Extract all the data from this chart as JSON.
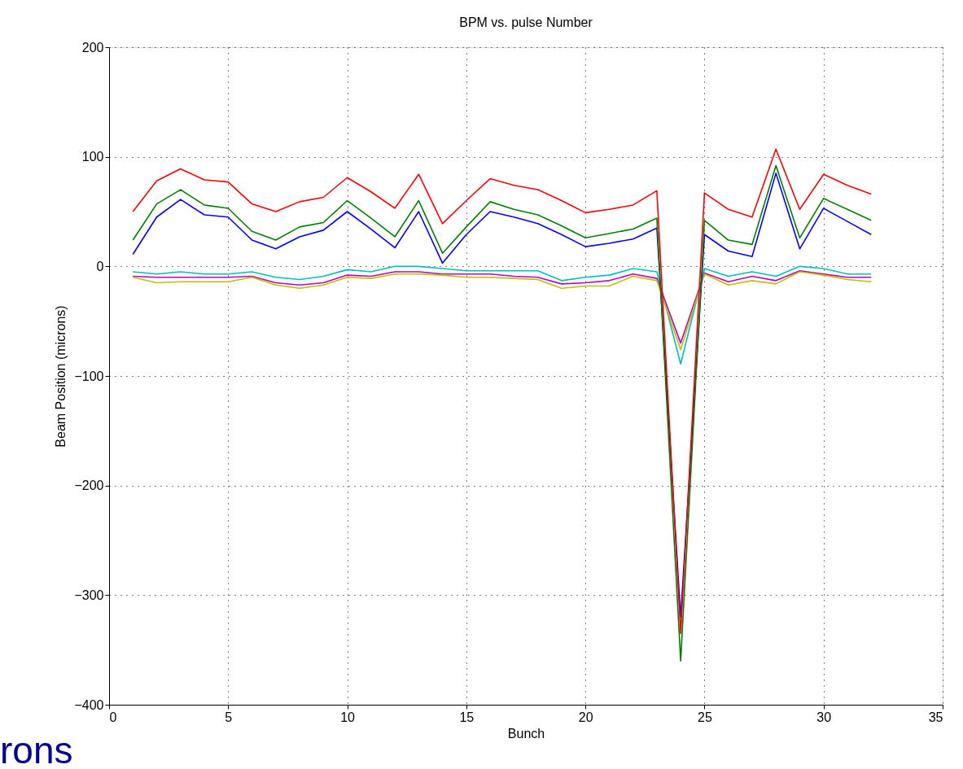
{
  "chart_data": {
    "type": "line",
    "title": "BPM vs. pulse Number",
    "xlabel": "Bunch",
    "ylabel": "Beam Position (microns)",
    "x": [
      1,
      2,
      3,
      4,
      5,
      6,
      7,
      8,
      9,
      10,
      11,
      12,
      13,
      14,
      15,
      16,
      17,
      18,
      19,
      20,
      21,
      22,
      23,
      24,
      25,
      26,
      27,
      28,
      29,
      30,
      31,
      32
    ],
    "series": [
      {
        "color": "#00bfbf",
        "values": [
          -5,
          -7,
          -5,
          -7,
          -7,
          -5,
          -10,
          -12,
          -9,
          -3,
          -5,
          0,
          0,
          -2,
          -4,
          -4,
          -4,
          -4,
          -13,
          -10,
          -8,
          -2,
          -5,
          -89,
          -2,
          -9,
          -5,
          -9,
          0,
          -2,
          -7,
          -7
        ]
      },
      {
        "color": "#bf00bf",
        "values": [
          -9,
          -10,
          -10,
          -10,
          -10,
          -9,
          -15,
          -17,
          -15,
          -8,
          -9,
          -5,
          -5,
          -7,
          -7,
          -7,
          -9,
          -10,
          -16,
          -15,
          -13,
          -7,
          -11,
          -70,
          -6,
          -14,
          -9,
          -13,
          -4,
          -7,
          -10,
          -10
        ]
      },
      {
        "color": "#bfbf00",
        "values": [
          -10,
          -15,
          -14,
          -14,
          -14,
          -10,
          -17,
          -20,
          -17,
          -10,
          -11,
          -7,
          -7,
          -8,
          -10,
          -10,
          -11,
          -12,
          -20,
          -18,
          -18,
          -9,
          -13,
          -76,
          -7,
          -17,
          -13,
          -16,
          -5,
          -8,
          -12,
          -14
        ]
      },
      {
        "color": "#0000ff",
        "values": [
          11,
          45,
          61,
          47,
          45,
          24,
          16,
          27,
          33,
          50,
          34,
          17,
          50,
          3,
          29,
          50,
          45,
          39,
          29,
          18,
          21,
          25,
          35,
          -320,
          29,
          14,
          9,
          85,
          16,
          53,
          41,
          29
        ]
      },
      {
        "color": "#008000",
        "values": [
          24,
          57,
          70,
          56,
          53,
          32,
          24,
          36,
          40,
          60,
          44,
          27,
          60,
          12,
          36,
          59,
          52,
          47,
          37,
          26,
          30,
          34,
          44,
          -360,
          42,
          24,
          20,
          92,
          26,
          62,
          52,
          42
        ]
      },
      {
        "color": "#ff0000",
        "values": [
          50,
          78,
          89,
          79,
          77,
          57,
          50,
          59,
          63,
          81,
          68,
          53,
          84,
          39,
          60,
          80,
          74,
          70,
          60,
          49,
          52,
          56,
          69,
          -335,
          67,
          52,
          45,
          107,
          52,
          84,
          74,
          66
        ]
      }
    ],
    "xlim": [
      0,
      35
    ],
    "xticks": [
      0,
      5,
      10,
      15,
      20,
      25,
      30,
      35
    ],
    "ylim": [
      -400,
      200
    ],
    "yticks": [
      -400,
      -300,
      -200,
      -100,
      0,
      100,
      200
    ],
    "grid": true,
    "marker": "none",
    "line_style": "solid",
    "annotations": [
      "rons"
    ]
  }
}
